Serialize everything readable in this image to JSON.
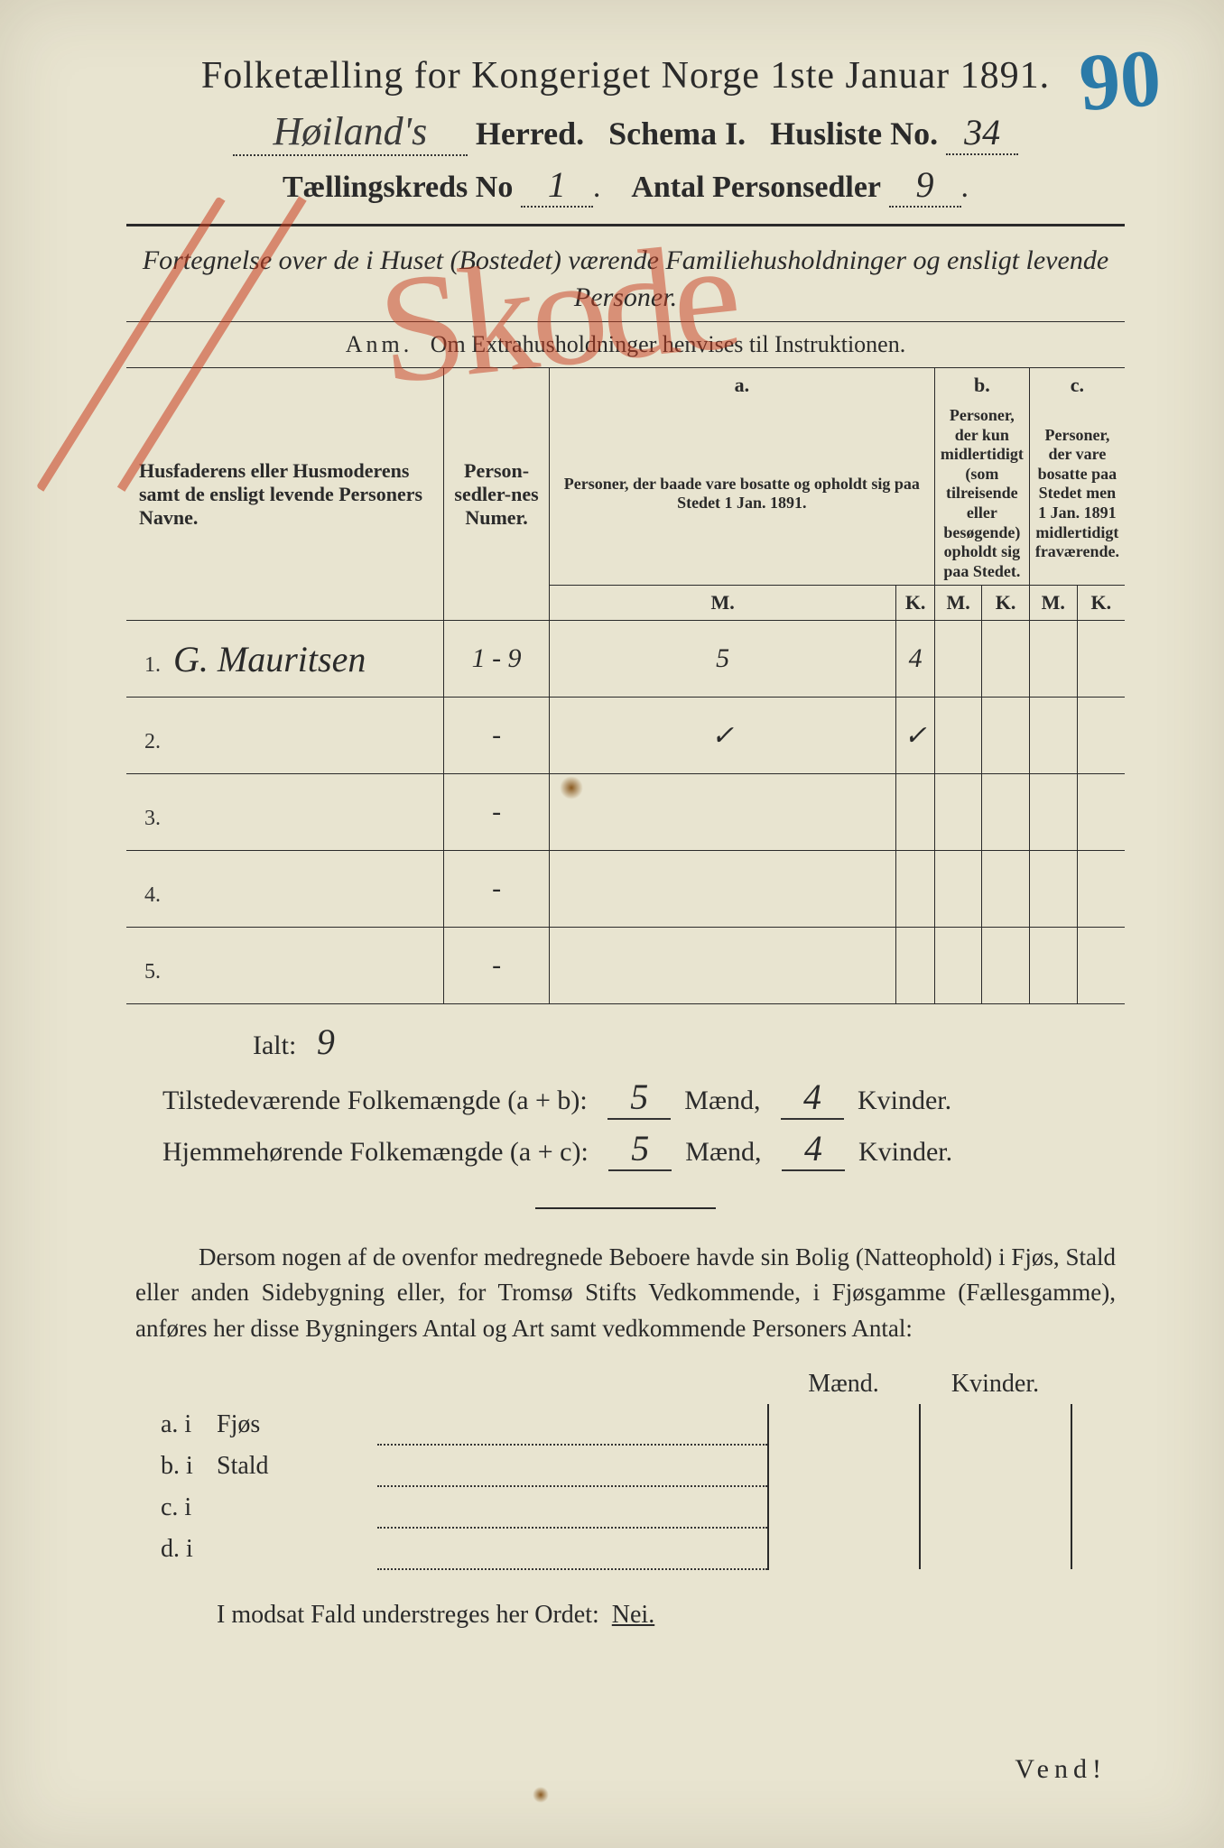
{
  "colors": {
    "paper": "#e8e4d0",
    "ink": "#2a2a2a",
    "red": "rgba(200,60,30,0.55)",
    "blue": "#2b7aa8"
  },
  "corner_mark": "90",
  "title": "Folketælling for Kongeriget Norge 1ste Januar 1891.",
  "herred_name": "Høiland's",
  "line2_herred": "Herred.",
  "line2_schema": "Schema I.",
  "line2_husliste": "Husliste No.",
  "husliste_no": "34",
  "line3_kreds": "Tællingskreds No",
  "kreds_no": "1",
  "line3_antal": "Antal Personsedler",
  "personsedler": "9",
  "subtitle": "Fortegnelse over de i Huset (Bostedet) værende Familiehusholdninger og ensligt levende Personer.",
  "anm_label": "Anm.",
  "anm_text": "Om Extrahusholdninger henvises til Instruktionen.",
  "table": {
    "head_name": "Husfaderens eller Husmoderens samt de ensligt levende Personers Navne.",
    "head_num": "Person-sedler-nes Numer.",
    "head_a_label": "a.",
    "head_a": "Personer, der baade vare bosatte og opholdt sig paa Stedet 1 Jan. 1891.",
    "head_b_label": "b.",
    "head_b": "Personer, der kun midlertidigt (som tilreisende eller besøgende) opholdt sig paa Stedet.",
    "head_c_label": "c.",
    "head_c": "Personer, der vare bosatte paa Stedet men 1 Jan. 1891 midlertidigt fraværende.",
    "mk_m": "M.",
    "mk_k": "K.",
    "rows": [
      {
        "n": "1.",
        "name": "G. Mauritsen",
        "num": "1 - 9",
        "am": "5",
        "ak": "4",
        "bm": "",
        "bk": "",
        "cm": "",
        "ck": ""
      },
      {
        "n": "2.",
        "name": "",
        "num": "-",
        "am": "✓",
        "ak": "✓",
        "bm": "",
        "bk": "",
        "cm": "",
        "ck": ""
      },
      {
        "n": "3.",
        "name": "",
        "num": "-",
        "am": "",
        "ak": "",
        "bm": "",
        "bk": "",
        "cm": "",
        "ck": ""
      },
      {
        "n": "4.",
        "name": "",
        "num": "-",
        "am": "",
        "ak": "",
        "bm": "",
        "bk": "",
        "cm": "",
        "ck": ""
      },
      {
        "n": "5.",
        "name": "",
        "num": "-",
        "am": "",
        "ak": "",
        "bm": "",
        "bk": "",
        "cm": "",
        "ck": ""
      }
    ]
  },
  "ialt_label": "Ialt:",
  "ialt_val": "9",
  "tot1_label": "Tilstedeværende Folkemængde (a + b):",
  "tot1_m": "5",
  "tot1_k": "4",
  "tot2_label": "Hjemmehørende Folkemængde (a + c):",
  "tot2_m": "5",
  "tot2_k": "4",
  "maend": "Mænd,",
  "kvinder": "Kvinder.",
  "para": "Dersom nogen af de ovenfor medregnede Beboere havde sin Bolig (Natteophold) i Fjøs, Stald eller anden Sidebygning eller, for Tromsø Stifts Vedkommende, i Fjøsgamme (Fællesgamme), anføres her disse Bygningers Antal og Art samt vedkommende Personers Antal:",
  "lower": {
    "head_m": "Mænd.",
    "head_k": "Kvinder.",
    "rows": [
      {
        "l": "a.  i",
        "w": "Fjøs"
      },
      {
        "l": "b.  i",
        "w": "Stald"
      },
      {
        "l": "c.  i",
        "w": ""
      },
      {
        "l": "d.  i",
        "w": ""
      }
    ]
  },
  "modsat": "I modsat Fald understreges her Ordet:",
  "nei": "Nei.",
  "vend": "Vend!",
  "red_scrawl": "Skode"
}
